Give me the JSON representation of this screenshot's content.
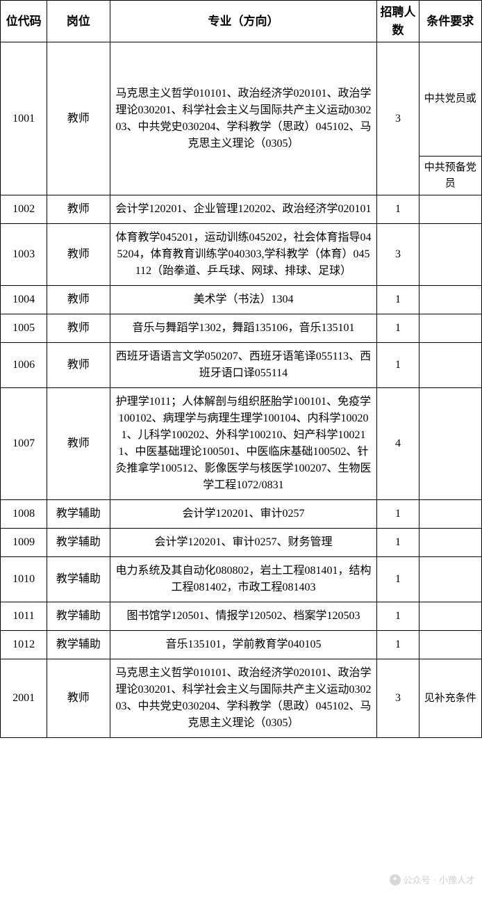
{
  "headers": {
    "code": "位代码",
    "position": "岗位",
    "major": "专业（方向）",
    "count": "招聘人数",
    "requirement": "条件要求"
  },
  "rows": [
    {
      "code": "1001",
      "position": "教师",
      "major": "马克思主义哲学010101、政治经济学020101、政治学理论030201、科学社会主义与国际共产主义运动030203、中共党史030204、学科教学（思政）045102、马克思主义理论（0305）",
      "count": "3",
      "req_top": "中共党员或",
      "req_bottom": "中共预备党员",
      "split_req": true
    },
    {
      "code": "1002",
      "position": "教师",
      "major": "会计学120201、企业管理120202、政治经济学020101",
      "count": "1",
      "requirement": ""
    },
    {
      "code": "1003",
      "position": "教师",
      "major": "体育教学045201，运动训练045202，社会体育指导045204，体育教育训练学040303,学科教学（体育）045112（跆拳道、乒乓球、网球、排球、足球）",
      "count": "3",
      "requirement": ""
    },
    {
      "code": "1004",
      "position": "教师",
      "major": "美术学（书法）1304",
      "count": "1",
      "requirement": ""
    },
    {
      "code": "1005",
      "position": "教师",
      "major": "音乐与舞蹈学1302，舞蹈135106，音乐135101",
      "count": "1",
      "requirement": ""
    },
    {
      "code": "1006",
      "position": "教师",
      "major": "西班牙语语言文学050207、西班牙语笔译055113、西班牙语口译055114",
      "count": "1",
      "requirement": ""
    },
    {
      "code": "1007",
      "position": "教师",
      "major": "护理学1011；人体解剖与组织胚胎学100101、免疫学100102、病理学与病理生理学100104、内科学100201、儿科学100202、外科学100210、妇产科学100211、中医基础理论100501、中医临床基础100502、针灸推拿学100512、影像医学与核医学100207、生物医学工程1072/0831",
      "count": "4",
      "requirement": ""
    },
    {
      "code": "1008",
      "position": "教学辅助",
      "major": "会计学120201、审计0257",
      "count": "1",
      "requirement": ""
    },
    {
      "code": "1009",
      "position": "教学辅助",
      "major": "会计学120201、审计0257、财务管理",
      "count": "1",
      "requirement": ""
    },
    {
      "code": "1010",
      "position": "教学辅助",
      "major": "电力系统及其自动化080802，岩土工程081401，结构工程081402，市政工程081403",
      "count": "1",
      "requirement": ""
    },
    {
      "code": "1011",
      "position": "教学辅助",
      "major": "图书馆学120501、情报学120502、档案学120503",
      "count": "1",
      "requirement": ""
    },
    {
      "code": "1012",
      "position": "教学辅助",
      "major": "音乐135101，学前教育学040105",
      "count": "1",
      "requirement": ""
    },
    {
      "code": "2001",
      "position": "教师",
      "major": "马克思主义哲学010101、政治经济学020101、政治学理论030201、科学社会主义与国际共产主义运动030203、中共党史030204、学科教学（思政）045102、马克思主义理论（0305）",
      "count": "3",
      "requirement": "见补充条件"
    }
  ],
  "watermark": {
    "source": "公众号",
    "name": "小豫人才"
  },
  "styling": {
    "border_color": "#000000",
    "background_color": "#ffffff",
    "font_family": "SimSun",
    "header_fontsize": 17,
    "body_fontsize": 16,
    "watermark_color": "#c8c8c8"
  }
}
